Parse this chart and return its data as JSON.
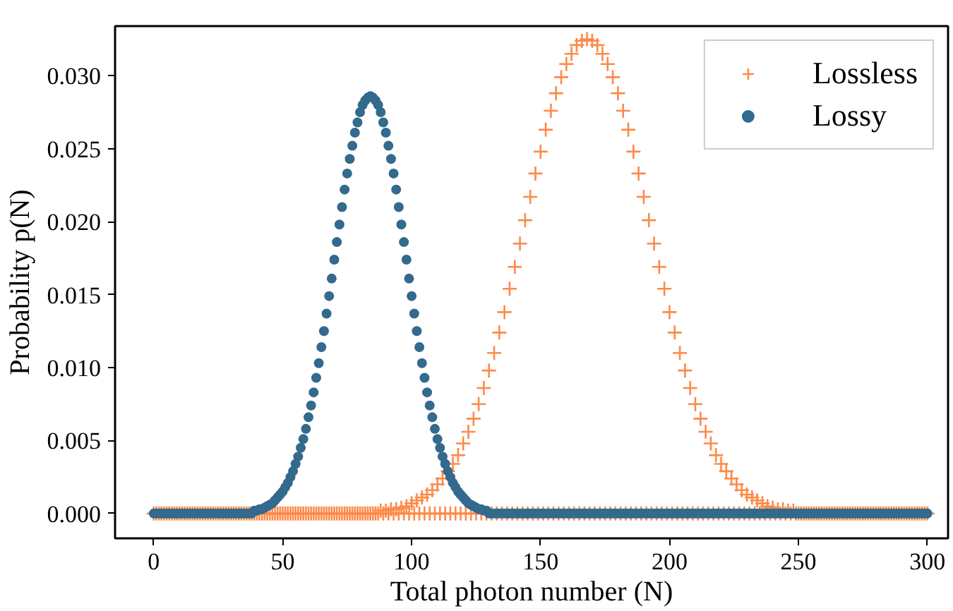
{
  "chart_data": {
    "type": "scatter",
    "xlabel": "Total photon number (N)",
    "ylabel": "Probability p(N)",
    "xlim": [
      -15,
      308
    ],
    "ylim": [
      -0.0017,
      0.0334
    ],
    "xticks": [
      0,
      50,
      100,
      150,
      200,
      250,
      300
    ],
    "yticks": [
      {
        "value": 0,
        "label": "0.000"
      },
      {
        "value": 0.005,
        "label": "0.005"
      },
      {
        "value": 0.01,
        "label": "0.010"
      },
      {
        "value": 0.015,
        "label": "0.015"
      },
      {
        "value": 0.02,
        "label": "0.020"
      },
      {
        "value": 0.025,
        "label": "0.025"
      },
      {
        "value": 0.03,
        "label": "0.030"
      }
    ],
    "grid": false,
    "legend": "top right",
    "x": [
      0,
      1,
      2,
      3,
      4,
      5,
      6,
      7,
      8,
      9,
      10,
      11,
      12,
      13,
      14,
      15,
      16,
      17,
      18,
      19,
      20,
      21,
      22,
      23,
      24,
      25,
      26,
      27,
      28,
      29,
      30,
      31,
      32,
      33,
      34,
      35,
      36,
      37,
      38,
      39,
      40,
      41,
      42,
      43,
      44,
      45,
      46,
      47,
      48,
      49,
      50,
      51,
      52,
      53,
      54,
      55,
      56,
      57,
      58,
      59,
      60,
      61,
      62,
      63,
      64,
      65,
      66,
      67,
      68,
      69,
      70,
      71,
      72,
      73,
      74,
      75,
      76,
      77,
      78,
      79,
      80,
      81,
      82,
      83,
      84,
      85,
      86,
      87,
      88,
      89,
      90,
      91,
      92,
      93,
      94,
      95,
      96,
      97,
      98,
      99,
      100,
      101,
      102,
      103,
      104,
      105,
      106,
      107,
      108,
      109,
      110,
      111,
      112,
      113,
      114,
      115,
      116,
      117,
      118,
      119,
      120,
      121,
      122,
      123,
      124,
      125,
      126,
      127,
      128,
      129,
      130,
      131,
      132,
      133,
      134,
      135,
      136,
      137,
      138,
      139,
      140,
      141,
      142,
      143,
      144,
      145,
      146,
      147,
      148,
      149,
      150,
      151,
      152,
      153,
      154,
      155,
      156,
      157,
      158,
      159,
      160,
      161,
      162,
      163,
      164,
      165,
      166,
      167,
      168,
      169,
      170,
      171,
      172,
      173,
      174,
      175,
      176,
      177,
      178,
      179,
      180,
      181,
      182,
      183,
      184,
      185,
      186,
      187,
      188,
      189,
      190,
      191,
      192,
      193,
      194,
      195,
      196,
      197,
      198,
      199,
      200,
      201,
      202,
      203,
      204,
      205,
      206,
      207,
      208,
      209,
      210,
      211,
      212,
      213,
      214,
      215,
      216,
      217,
      218,
      219,
      220,
      221,
      222,
      223,
      224,
      225,
      226,
      227,
      228,
      229,
      230,
      231,
      232,
      233,
      234,
      235,
      236,
      237,
      238,
      239,
      240,
      241,
      242,
      243,
      244,
      245,
      246,
      247,
      248,
      249,
      250,
      251,
      252,
      253,
      254,
      255,
      256,
      257,
      258,
      259,
      260,
      261,
      262,
      263,
      264,
      265,
      266,
      267,
      268,
      269,
      270,
      271,
      272,
      273,
      274,
      275,
      276,
      277,
      278,
      279,
      280,
      281,
      282,
      283,
      284,
      285,
      286,
      287,
      288,
      289,
      290,
      291,
      292,
      293,
      294,
      295,
      296,
      297,
      298,
      299,
      300
    ],
    "series": [
      {
        "name": "Lossless",
        "color": "#fd8a48",
        "marker": "cross",
        "values": [
          0,
          0,
          0,
          0,
          0,
          0,
          0,
          0,
          0,
          0,
          0,
          0,
          0,
          0,
          0,
          0,
          0,
          0,
          0,
          0,
          0,
          0,
          0,
          0,
          0,
          0,
          0,
          0,
          0,
          0,
          0,
          0,
          0,
          0,
          0,
          0,
          0,
          0,
          0,
          0,
          0,
          0,
          0,
          0,
          0,
          0,
          0,
          0,
          0,
          0,
          0,
          0,
          0,
          0,
          0,
          0,
          0,
          0,
          0,
          0,
          0,
          0,
          0,
          0,
          0,
          0,
          0,
          0,
          0,
          0,
          0,
          0,
          0,
          0,
          0,
          0,
          0,
          0,
          0,
          0,
          0,
          0,
          0,
          0,
          0,
          0,
          0,
          0,
          0.0002,
          0,
          0.0002,
          0,
          0.0003,
          0,
          0.0003,
          0,
          0.0004,
          0,
          0.0005,
          0,
          0.0007,
          0,
          0.0009,
          0,
          0.0011,
          0,
          0.0013,
          0,
          0.0016,
          0,
          0.002,
          0,
          0.0024,
          0,
          0.0029,
          0,
          0.0034,
          0,
          0.004,
          0,
          0.0048,
          0,
          0.0056,
          0,
          0.0065,
          0,
          0.0075,
          0,
          0.0086,
          0,
          0.0098,
          0,
          0.011,
          0,
          0.0124,
          0,
          0.0138,
          0,
          0.0154,
          0,
          0.0169,
          0,
          0.0185,
          0,
          0.0201,
          0,
          0.0217,
          0,
          0.0233,
          0,
          0.0248,
          0,
          0.0263,
          0,
          0.0276,
          0,
          0.0288,
          0,
          0.0299,
          0,
          0.0308,
          0,
          0.0315,
          0,
          0.0321,
          0,
          0.0324,
          0,
          0.0325,
          0,
          0.0324,
          0,
          0.0321,
          0,
          0.0315,
          0,
          0.0308,
          0,
          0.0299,
          0,
          0.0288,
          0,
          0.0276,
          0,
          0.0263,
          0,
          0.0248,
          0,
          0.0233,
          0,
          0.0217,
          0,
          0.0201,
          0,
          0.0185,
          0,
          0.0169,
          0,
          0.0154,
          0,
          0.0138,
          0,
          0.0124,
          0,
          0.011,
          0,
          0.0098,
          0,
          0.0086,
          0,
          0.0075,
          0,
          0.0065,
          0,
          0.0056,
          0,
          0.0048,
          0,
          0.004,
          0,
          0.0034,
          0,
          0.0029,
          0,
          0.0024,
          0,
          0.002,
          0,
          0.0016,
          0,
          0.0013,
          0,
          0.0011,
          0,
          0.0009,
          0,
          0.0007,
          0,
          0.0005,
          0,
          0.0004,
          0,
          0.0003,
          0,
          0.0003,
          0,
          0.0002,
          0,
          0.0002,
          0,
          0,
          0,
          0,
          0,
          0,
          0,
          0,
          0,
          0,
          0,
          0,
          0,
          0,
          0,
          0,
          0,
          0,
          0,
          0,
          0,
          0,
          0,
          0,
          0,
          0,
          0,
          0,
          0,
          0,
          0,
          0,
          0,
          0,
          0,
          0,
          0,
          0,
          0,
          0,
          0,
          0,
          0,
          0,
          0,
          0,
          0,
          0,
          0,
          0,
          0,
          0
        ]
      },
      {
        "name": "Lossy",
        "color": "#336a8e",
        "marker": "circle",
        "values": [
          0,
          0,
          0,
          0,
          0,
          0,
          0,
          0,
          0,
          0,
          0,
          0,
          0,
          0,
          0,
          0,
          0,
          0,
          0,
          0,
          0,
          0,
          0,
          0,
          0,
          0,
          0,
          0,
          0,
          0,
          0,
          0,
          0,
          0,
          0,
          0,
          0,
          0,
          0,
          0.0002,
          0.0002,
          0.0003,
          0.0003,
          0.0004,
          0.0005,
          0.0006,
          0.0007,
          0.0009,
          0.0011,
          0.0013,
          0.0015,
          0.0018,
          0.0021,
          0.0025,
          0.0029,
          0.0034,
          0.0039,
          0.0045,
          0.0051,
          0.0058,
          0.0066,
          0.0074,
          0.0083,
          0.0093,
          0.0103,
          0.0114,
          0.0125,
          0.0137,
          0.0149,
          0.0161,
          0.0174,
          0.0186,
          0.0198,
          0.021,
          0.0222,
          0.0233,
          0.0243,
          0.0252,
          0.0261,
          0.0268,
          0.0275,
          0.028,
          0.0283,
          0.0285,
          0.0286,
          0.0285,
          0.0283,
          0.028,
          0.0275,
          0.0268,
          0.0261,
          0.0252,
          0.0243,
          0.0233,
          0.0222,
          0.021,
          0.0198,
          0.0186,
          0.0174,
          0.0161,
          0.0149,
          0.0137,
          0.0125,
          0.0114,
          0.0103,
          0.0093,
          0.0083,
          0.0074,
          0.0066,
          0.0058,
          0.0051,
          0.0045,
          0.0039,
          0.0034,
          0.0029,
          0.0025,
          0.0021,
          0.0018,
          0.0015,
          0.0013,
          0.0011,
          0.0009,
          0.0007,
          0.0006,
          0.0005,
          0.0004,
          0.0003,
          0.0003,
          0.0002,
          0.0002,
          0,
          0,
          0,
          0,
          0,
          0,
          0,
          0,
          0,
          0,
          0,
          0,
          0,
          0,
          0,
          0,
          0,
          0,
          0,
          0,
          0,
          0,
          0,
          0,
          0,
          0,
          0,
          0,
          0,
          0,
          0,
          0,
          0,
          0,
          0,
          0,
          0,
          0,
          0,
          0,
          0,
          0,
          0,
          0,
          0,
          0,
          0,
          0,
          0,
          0,
          0,
          0,
          0,
          0,
          0,
          0,
          0,
          0,
          0,
          0,
          0,
          0,
          0,
          0,
          0,
          0,
          0,
          0,
          0,
          0,
          0,
          0,
          0,
          0,
          0,
          0,
          0,
          0,
          0,
          0,
          0,
          0,
          0,
          0,
          0,
          0,
          0,
          0,
          0,
          0,
          0,
          0,
          0,
          0,
          0,
          0,
          0,
          0,
          0,
          0,
          0,
          0,
          0,
          0,
          0,
          0,
          0,
          0,
          0,
          0,
          0,
          0,
          0,
          0,
          0,
          0,
          0,
          0,
          0,
          0,
          0,
          0,
          0,
          0,
          0,
          0,
          0,
          0,
          0,
          0,
          0,
          0,
          0,
          0,
          0,
          0,
          0,
          0,
          0,
          0,
          0,
          0,
          0,
          0,
          0,
          0,
          0,
          0,
          0,
          0,
          0,
          0,
          0,
          0,
          0,
          0,
          0,
          0,
          0,
          0,
          0,
          0,
          0,
          0,
          0,
          0,
          0,
          0,
          0,
          0,
          0
        ]
      }
    ]
  }
}
